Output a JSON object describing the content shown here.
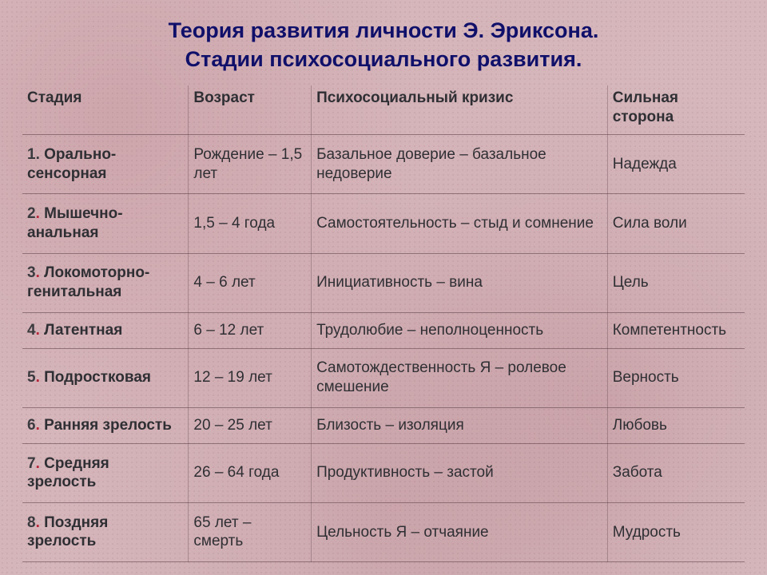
{
  "title_line1": "Теория развития личности Э. Эриксона.",
  "title_line2": "Стадии психосоциального развития.",
  "title_color": "#10106a",
  "title_fontsize": 27,
  "text_color": "#2f2f34",
  "number_color": "#3a3a3f",
  "dot_accent_color": "#b8253a",
  "border_color": "rgba(90,60,70,0.55)",
  "columns": [
    "Стадия",
    "Возраст",
    "Психосоциальный кризис",
    "Сильная сторона"
  ],
  "rows": [
    {
      "num": "1",
      "dot_accent": false,
      "name": "Орально-сенсорная",
      "age": "Рождение – 1,5 лет",
      "crisis": "Базальное доверие – базальное недоверие",
      "strength": "Надежда"
    },
    {
      "num": "2",
      "dot_accent": true,
      "name": "Мышечно-анальная",
      "age": "1,5  – 4 года",
      "crisis": "Самостоятельность – стыд и сомнение",
      "strength": "Сила воли"
    },
    {
      "num": "3",
      "dot_accent": true,
      "name": "Локомоторно-генитальная",
      "age": "4 – 6 лет",
      "crisis": "Инициативность – вина",
      "strength": "Цель"
    },
    {
      "num": "4",
      "dot_accent": true,
      "name": "Латентная",
      "age": "6 – 12 лет",
      "crisis": "Трудолюбие – неполноценность",
      "strength": "Компетентность"
    },
    {
      "num": "5",
      "dot_accent": true,
      "name": "Подростковая",
      "age": "12 – 19 лет",
      "crisis": "Самотождественность Я – ролевое смешение",
      "strength": "Верность"
    },
    {
      "num": "6",
      "dot_accent": true,
      "name": "Ранняя зрелость",
      "age": "20 – 25 лет",
      "crisis": "Близость – изоляция",
      "strength": "Любовь"
    },
    {
      "num": "7",
      "dot_accent": true,
      "name": "Средняя зрелость",
      "age": "26 – 64 года",
      "crisis": "Продуктивность – застой",
      "strength": "Забота"
    },
    {
      "num": "8",
      "dot_accent": true,
      "name": "Поздняя зрелость",
      "age": "65 лет – смерть",
      "crisis": "Цельность Я – отчаяние",
      "strength": "Мудрость"
    }
  ]
}
